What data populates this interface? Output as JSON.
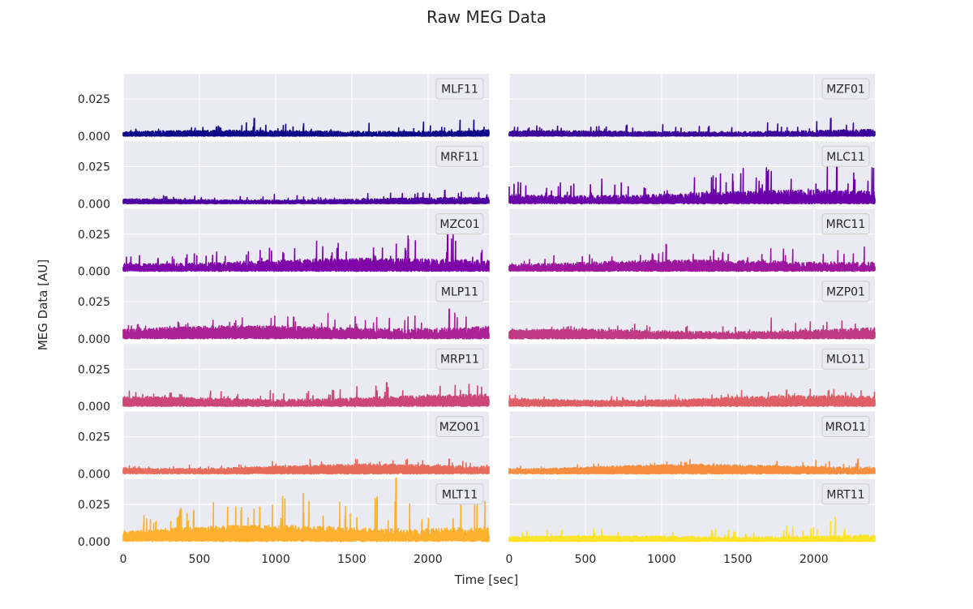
{
  "chart_data": {
    "type": "line",
    "title": "Raw MEG Data",
    "xlabel": "Time [sec]",
    "ylabel": "MEG Data [AU]",
    "xlim": [
      0,
      2400
    ],
    "ylim": [
      0,
      0.042
    ],
    "xticks": [
      0,
      500,
      1000,
      1500,
      2000
    ],
    "yticks": [
      0.0,
      0.025
    ],
    "ytick_labels": [
      "0.000",
      "0.025"
    ],
    "grid": true,
    "legend": "top-right box in each panel",
    "layout": {
      "rows": 7,
      "cols": 2
    },
    "background": "#eaeaf2",
    "series": [
      {
        "name": "MLF11",
        "color": "#0d0887",
        "baseline": 0.002,
        "noise": 0.0015,
        "peak": 0.012,
        "peak_x": 860
      },
      {
        "name": "MZF01",
        "color": "#2f0596",
        "baseline": 0.002,
        "noise": 0.0014,
        "peak": 0.012,
        "peak_x": 2110
      },
      {
        "name": "MRF11",
        "color": "#4903a0",
        "baseline": 0.002,
        "noise": 0.0012,
        "peak": 0.009,
        "peak_x": 2110
      },
      {
        "name": "MLC11",
        "color": "#6100a7",
        "baseline": 0.004,
        "noise": 0.003,
        "peak": 0.031,
        "peak_x": 2150
      },
      {
        "name": "MZC01",
        "color": "#7801a8",
        "baseline": 0.004,
        "noise": 0.003,
        "peak": 0.026,
        "peak_x": 2130
      },
      {
        "name": "MRC11",
        "color": "#8f0da4",
        "baseline": 0.004,
        "noise": 0.0025,
        "peak": 0.018,
        "peak_x": 1030
      },
      {
        "name": "MLP11",
        "color": "#a31e9a",
        "baseline": 0.005,
        "noise": 0.0028,
        "peak": 0.02,
        "peak_x": 2140
      },
      {
        "name": "MZP01",
        "color": "#b6308b",
        "baseline": 0.004,
        "noise": 0.002,
        "peak": 0.014,
        "peak_x": 1720
      },
      {
        "name": "MRP11",
        "color": "#c6417d",
        "baseline": 0.004,
        "noise": 0.0022,
        "peak": 0.016,
        "peak_x": 1730
      },
      {
        "name": "MLO11",
        "color": "#d5546e",
        "baseline": 0.004,
        "noise": 0.0018,
        "peak": 0.011,
        "peak_x": 1820
      },
      {
        "name": "MZO01",
        "color": "#e16462",
        "baseline": 0.004,
        "noise": 0.0015,
        "peak": 0.01,
        "peak_x": 2140
      },
      {
        "name": "MRO11",
        "color": "#ec7754",
        "baseline": 0.004,
        "noise": 0.0015,
        "peak": 0.01,
        "peak_x": 2290
      },
      {
        "name": "MLT11",
        "color": "#f48849",
        "baseline": 0.006,
        "noise": 0.0035,
        "peak": 0.043,
        "peak_x": 1790
      },
      {
        "name": "MRT11",
        "color": "#fb9f3a",
        "baseline": 0.002,
        "noise": 0.0015,
        "peak": 0.016,
        "peak_x": 2140
      }
    ],
    "panel_colors": [
      "#0d0887",
      "#2f0596",
      "#4903a0",
      "#6100a7",
      "#7801a8",
      "#8f0da4",
      "#a31e9a",
      "#b6308b",
      "#c6417d",
      "#d5546e",
      "#e16462",
      "#ec7754",
      "#f48849",
      "#fb9f3a",
      "#fdb42f",
      "#f0f921"
    ]
  }
}
